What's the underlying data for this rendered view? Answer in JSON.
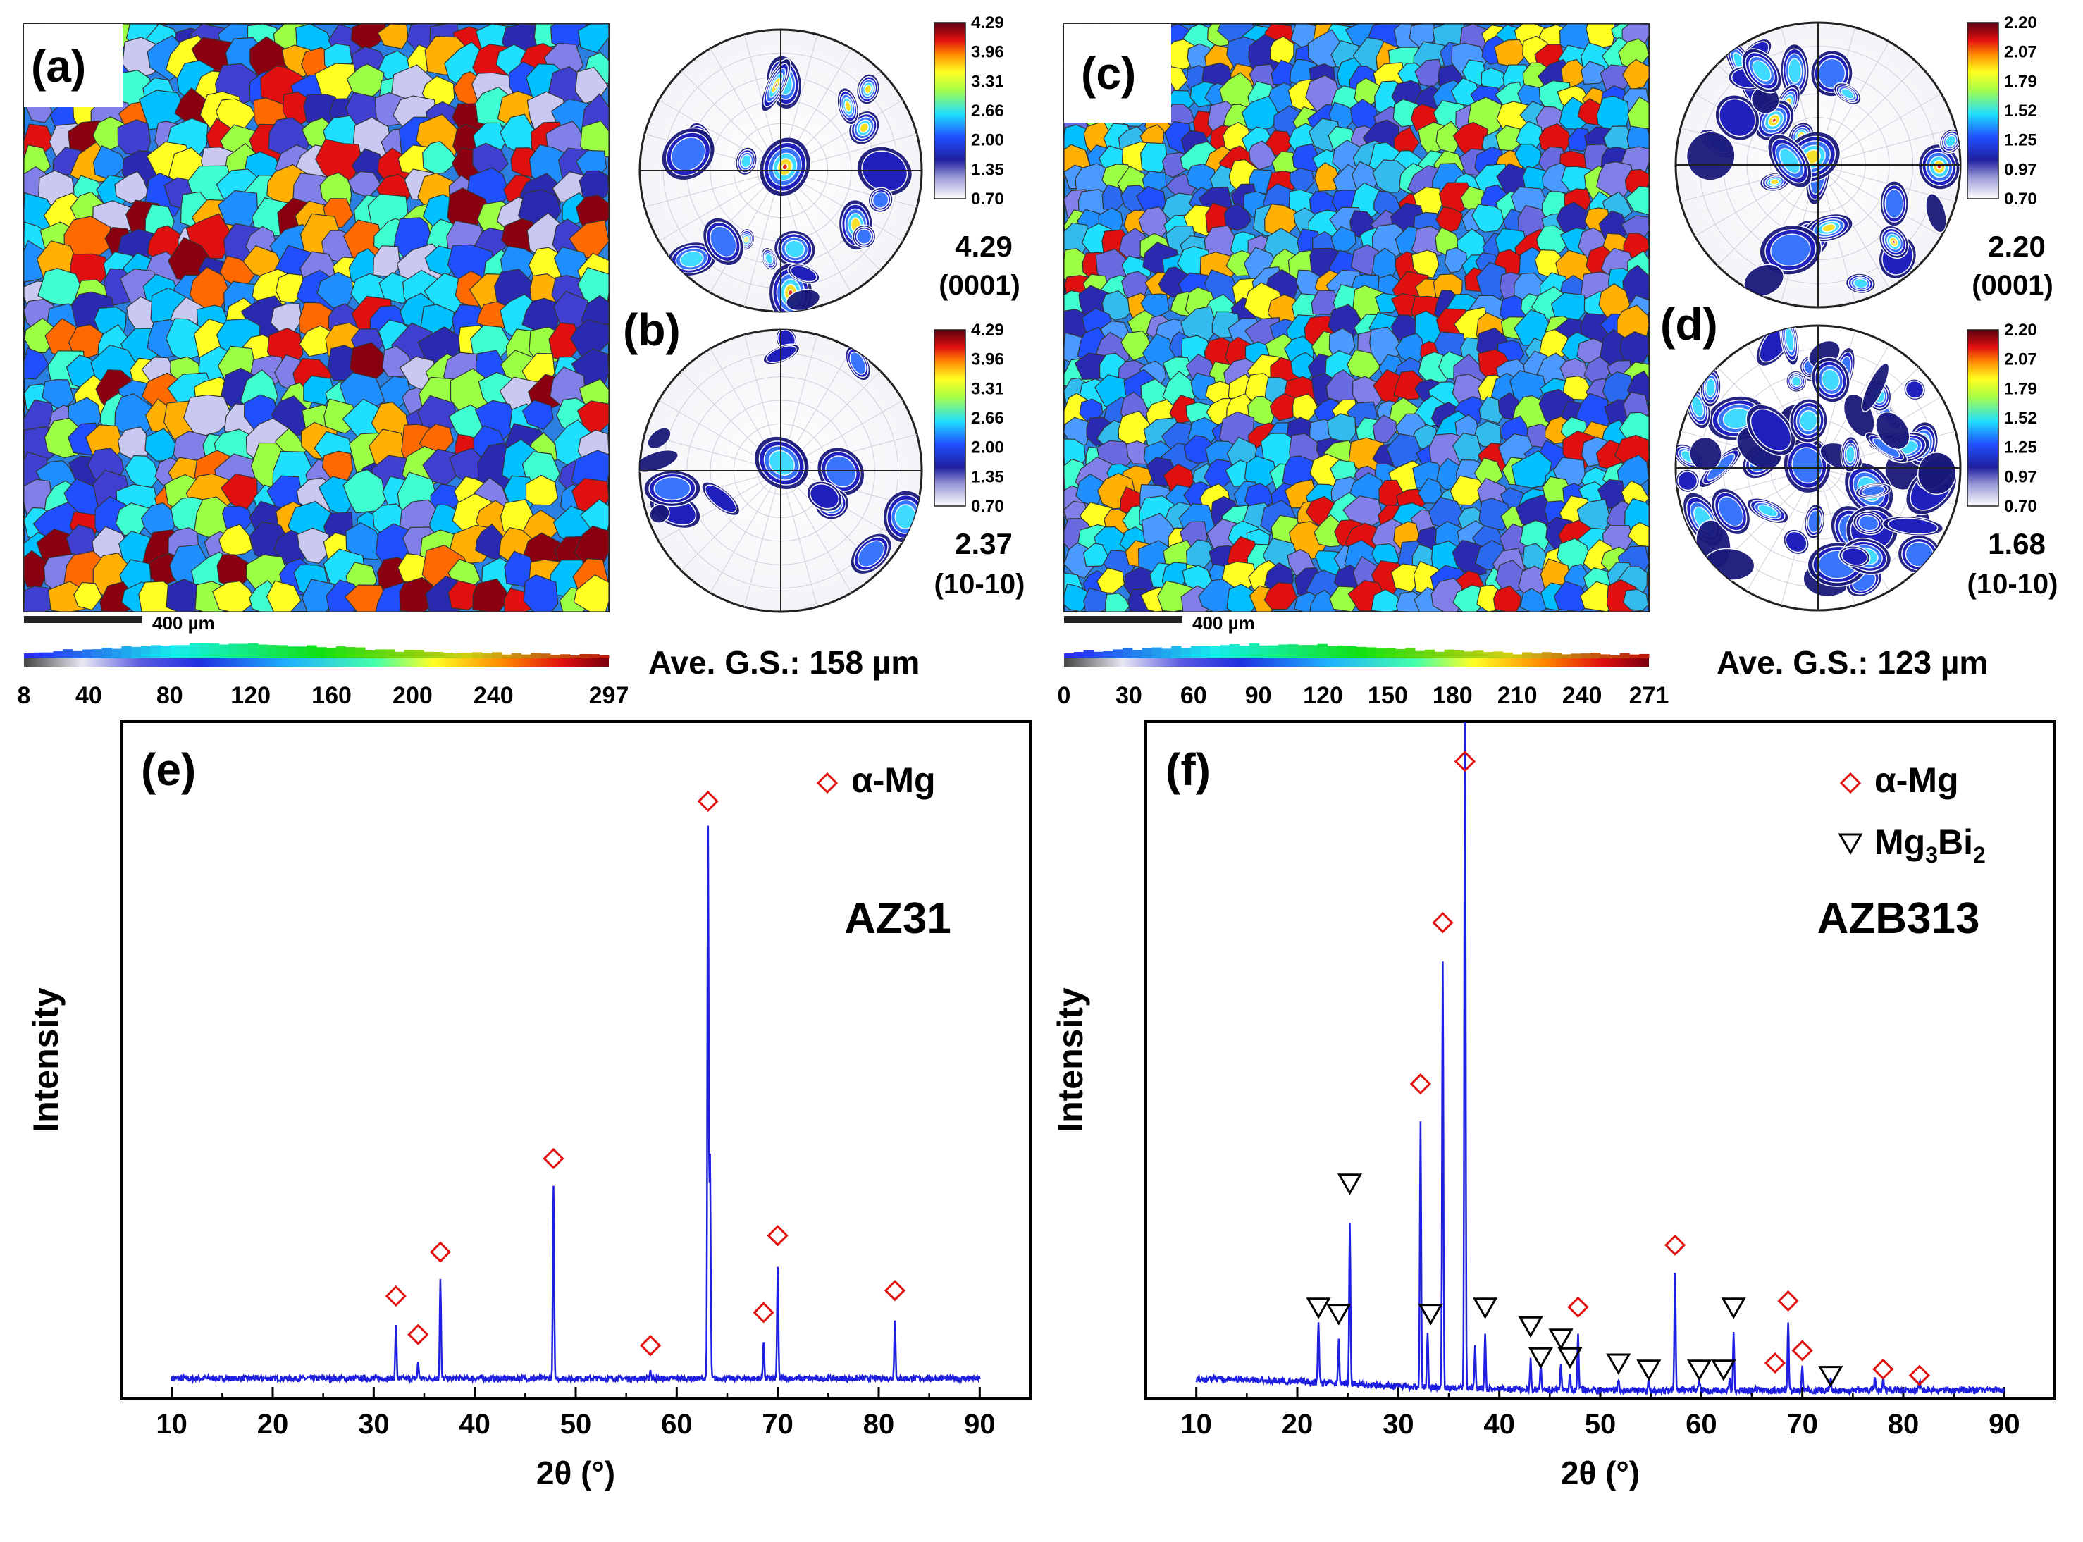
{
  "panels": {
    "a": {
      "label": "(a)",
      "scale_bar": "400 µm",
      "colorbar_ticks": [
        "8",
        "40",
        "80",
        "120",
        "160",
        "200",
        "240",
        "297"
      ],
      "avg_grain_size": "Ave. G.S.: 158 µm",
      "pole_figure_0001": {
        "max_value": "4.29",
        "plane": "(0001)"
      },
      "pf_scale": [
        "4.29",
        "3.96",
        "3.31",
        "2.66",
        "2.00",
        "1.35",
        "0.70"
      ]
    },
    "b": {
      "label": "(b)",
      "pole_figure_1010": {
        "max_value": "2.37",
        "plane": "(10-10)"
      },
      "pf_scale": [
        "4.29",
        "3.96",
        "3.31",
        "2.66",
        "2.00",
        "1.35",
        "0.70"
      ]
    },
    "c": {
      "label": "(c)",
      "scale_bar": "400 µm",
      "colorbar_ticks": [
        "0",
        "30",
        "60",
        "90",
        "120",
        "150",
        "180",
        "210",
        "240",
        "271"
      ],
      "avg_grain_size": "Ave. G.S.: 123 µm",
      "pole_figure_0001": {
        "max_value": "2.20",
        "plane": "(0001)"
      },
      "pf_scale": [
        "2.20",
        "2.07",
        "1.79",
        "1.52",
        "1.25",
        "0.97",
        "0.70"
      ]
    },
    "d": {
      "label": "(d)",
      "pole_figure_1010": {
        "max_value": "1.68",
        "plane": "(10-10)"
      },
      "pf_scale": [
        "2.20",
        "2.07",
        "1.79",
        "1.52",
        "1.25",
        "0.97",
        "0.70"
      ]
    }
  },
  "colors": {
    "series": "#1f1fe0",
    "alpha_marker": "#e01010",
    "mg3bi2_marker": "#000000"
  },
  "chart_data": [
    {
      "id": "e",
      "type": "line",
      "label": "(e)",
      "title": "AZ31",
      "xlabel": "2θ (°)",
      "ylabel": "Intensity",
      "xlim": [
        5,
        95
      ],
      "ylim": [
        0,
        100
      ],
      "xticks": [
        10,
        20,
        30,
        40,
        50,
        60,
        70,
        80,
        90
      ],
      "legend": [
        {
          "symbol": "diamond",
          "text": "α-Mg"
        }
      ],
      "peaks": [
        {
          "x": 32.2,
          "h": 10
        },
        {
          "x": 34.4,
          "h": 3
        },
        {
          "x": 36.6,
          "h": 18
        },
        {
          "x": 47.8,
          "h": 35
        },
        {
          "x": 57.4,
          "h": 1.5
        },
        {
          "x": 63.1,
          "h": 100
        },
        {
          "x": 63.3,
          "h": 40
        },
        {
          "x": 68.6,
          "h": 7
        },
        {
          "x": 70.0,
          "h": 20
        },
        {
          "x": 81.6,
          "h": 11
        }
      ],
      "markers": [
        {
          "x": 32.2,
          "y": 15,
          "type": "alpha"
        },
        {
          "x": 34.4,
          "y": 8,
          "type": "alpha"
        },
        {
          "x": 36.6,
          "y": 23,
          "type": "alpha"
        },
        {
          "x": 47.8,
          "y": 40,
          "type": "alpha"
        },
        {
          "x": 57.4,
          "y": 6,
          "type": "alpha"
        },
        {
          "x": 63.1,
          "y": 105,
          "type": "alpha"
        },
        {
          "x": 68.6,
          "y": 12,
          "type": "alpha"
        },
        {
          "x": 70.0,
          "y": 26,
          "type": "alpha"
        },
        {
          "x": 81.6,
          "y": 16,
          "type": "alpha"
        }
      ]
    },
    {
      "id": "f",
      "type": "line",
      "label": "(f)",
      "title": "AZB313",
      "xlabel": "2θ (°)",
      "ylabel": "Intensity",
      "xlim": [
        5,
        95
      ],
      "ylim": [
        0,
        100
      ],
      "xticks": [
        10,
        20,
        30,
        40,
        50,
        60,
        70,
        80,
        90
      ],
      "legend": [
        {
          "symbol": "diamond",
          "text": "α-Mg"
        },
        {
          "symbol": "triangle",
          "text": "Mg3Bi2",
          "base": "Mg",
          "sub1": "3",
          "mid": "Bi",
          "sub2": "2"
        }
      ],
      "peaks": [
        {
          "x": 22.1,
          "h": 10
        },
        {
          "x": 24.1,
          "h": 7
        },
        {
          "x": 25.2,
          "h": 26
        },
        {
          "x": 32.2,
          "h": 43
        },
        {
          "x": 32.9,
          "h": 9
        },
        {
          "x": 34.4,
          "h": 69
        },
        {
          "x": 36.6,
          "h": 112
        },
        {
          "x": 37.6,
          "h": 7
        },
        {
          "x": 38.6,
          "h": 9
        },
        {
          "x": 43.1,
          "h": 5
        },
        {
          "x": 44.1,
          "h": 4
        },
        {
          "x": 46.1,
          "h": 4
        },
        {
          "x": 47.0,
          "h": 3
        },
        {
          "x": 47.8,
          "h": 9
        },
        {
          "x": 51.8,
          "h": 2
        },
        {
          "x": 54.8,
          "h": 1.5
        },
        {
          "x": 57.4,
          "h": 19
        },
        {
          "x": 59.8,
          "h": 1.5
        },
        {
          "x": 62.8,
          "h": 2
        },
        {
          "x": 63.2,
          "h": 9
        },
        {
          "x": 68.6,
          "h": 11
        },
        {
          "x": 70.0,
          "h": 4
        },
        {
          "x": 72.8,
          "h": 2
        },
        {
          "x": 77.2,
          "h": 2
        },
        {
          "x": 78.0,
          "h": 2
        },
        {
          "x": 81.6,
          "h": 1.5
        }
      ],
      "markers": [
        {
          "x": 32.2,
          "y": 50,
          "type": "alpha"
        },
        {
          "x": 34.4,
          "y": 76,
          "type": "alpha"
        },
        {
          "x": 36.6,
          "y": 102,
          "type": "alpha"
        },
        {
          "x": 47.8,
          "y": 14,
          "type": "alpha"
        },
        {
          "x": 57.4,
          "y": 24,
          "type": "alpha"
        },
        {
          "x": 67.3,
          "y": 5,
          "type": "alpha"
        },
        {
          "x": 68.6,
          "y": 15,
          "type": "alpha"
        },
        {
          "x": 70.0,
          "y": 7,
          "type": "alpha"
        },
        {
          "x": 78.0,
          "y": 4,
          "type": "alpha"
        },
        {
          "x": 81.6,
          "y": 3,
          "type": "alpha"
        },
        {
          "x": 22.1,
          "y": 14,
          "type": "mg3bi2"
        },
        {
          "x": 24.1,
          "y": 13,
          "type": "mg3bi2"
        },
        {
          "x": 25.2,
          "y": 34,
          "type": "mg3bi2"
        },
        {
          "x": 33.2,
          "y": 13,
          "type": "mg3bi2"
        },
        {
          "x": 38.6,
          "y": 14,
          "type": "mg3bi2"
        },
        {
          "x": 43.1,
          "y": 11,
          "type": "mg3bi2"
        },
        {
          "x": 44.1,
          "y": 6,
          "type": "mg3bi2"
        },
        {
          "x": 46.1,
          "y": 9,
          "type": "mg3bi2"
        },
        {
          "x": 47.0,
          "y": 6,
          "type": "mg3bi2"
        },
        {
          "x": 51.8,
          "y": 5,
          "type": "mg3bi2"
        },
        {
          "x": 54.8,
          "y": 4,
          "type": "mg3bi2"
        },
        {
          "x": 59.8,
          "y": 4,
          "type": "mg3bi2"
        },
        {
          "x": 62.2,
          "y": 4,
          "type": "mg3bi2"
        },
        {
          "x": 63.2,
          "y": 14,
          "type": "mg3bi2"
        },
        {
          "x": 72.8,
          "y": 3,
          "type": "mg3bi2"
        }
      ]
    }
  ]
}
